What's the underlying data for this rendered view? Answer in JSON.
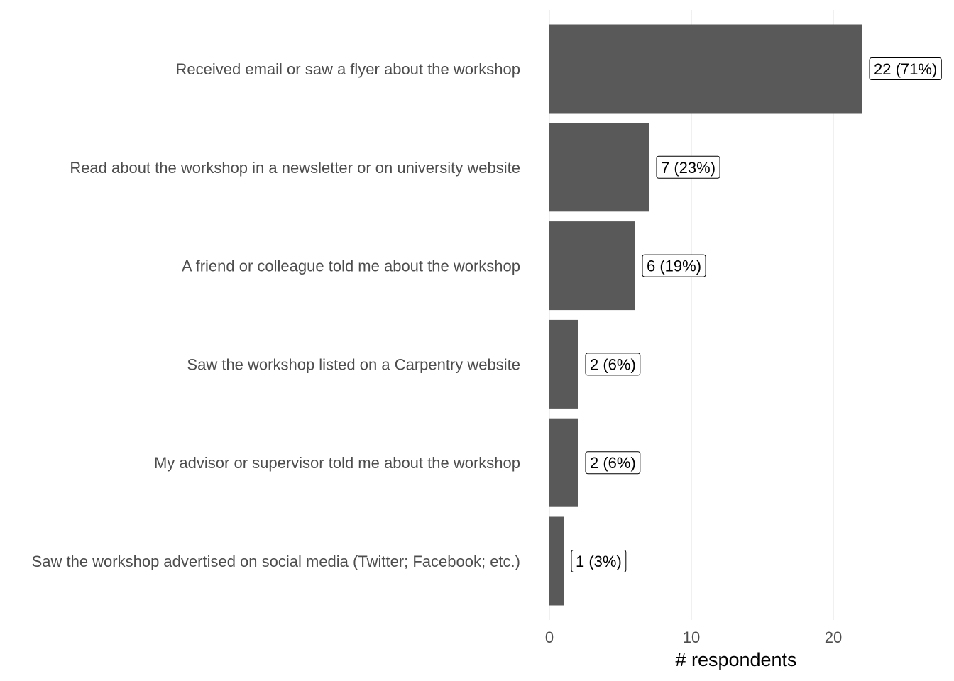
{
  "chart_data": {
    "type": "bar",
    "orientation": "horizontal",
    "categories": [
      "Received email or saw a flyer about the workshop",
      "Read about the workshop in a newsletter or on university website",
      "A friend or colleague told me about the workshop",
      "Saw the workshop listed on a Carpentry website",
      "My advisor or supervisor told me about the workshop",
      "Saw the workshop advertised on social media (Twitter; Facebook; etc.)"
    ],
    "values": [
      22,
      7,
      6,
      2,
      2,
      1
    ],
    "data_labels": [
      "22 (71%)",
      "7 (23%)",
      "6 (19%)",
      "2 (6%)",
      "2 (6%)",
      "1 (3%)"
    ],
    "xlabel": "# respondents",
    "ylabel": "",
    "title": "",
    "xlim": [
      0,
      27
    ],
    "x_ticks": [
      0,
      10,
      20
    ],
    "x_tick_labels": [
      "0",
      "10",
      "20"
    ],
    "grid": true,
    "legend": "none",
    "colors": {
      "bar": "#595959",
      "grid": "#ebebeb",
      "label_text": "#4d4d4d"
    }
  }
}
